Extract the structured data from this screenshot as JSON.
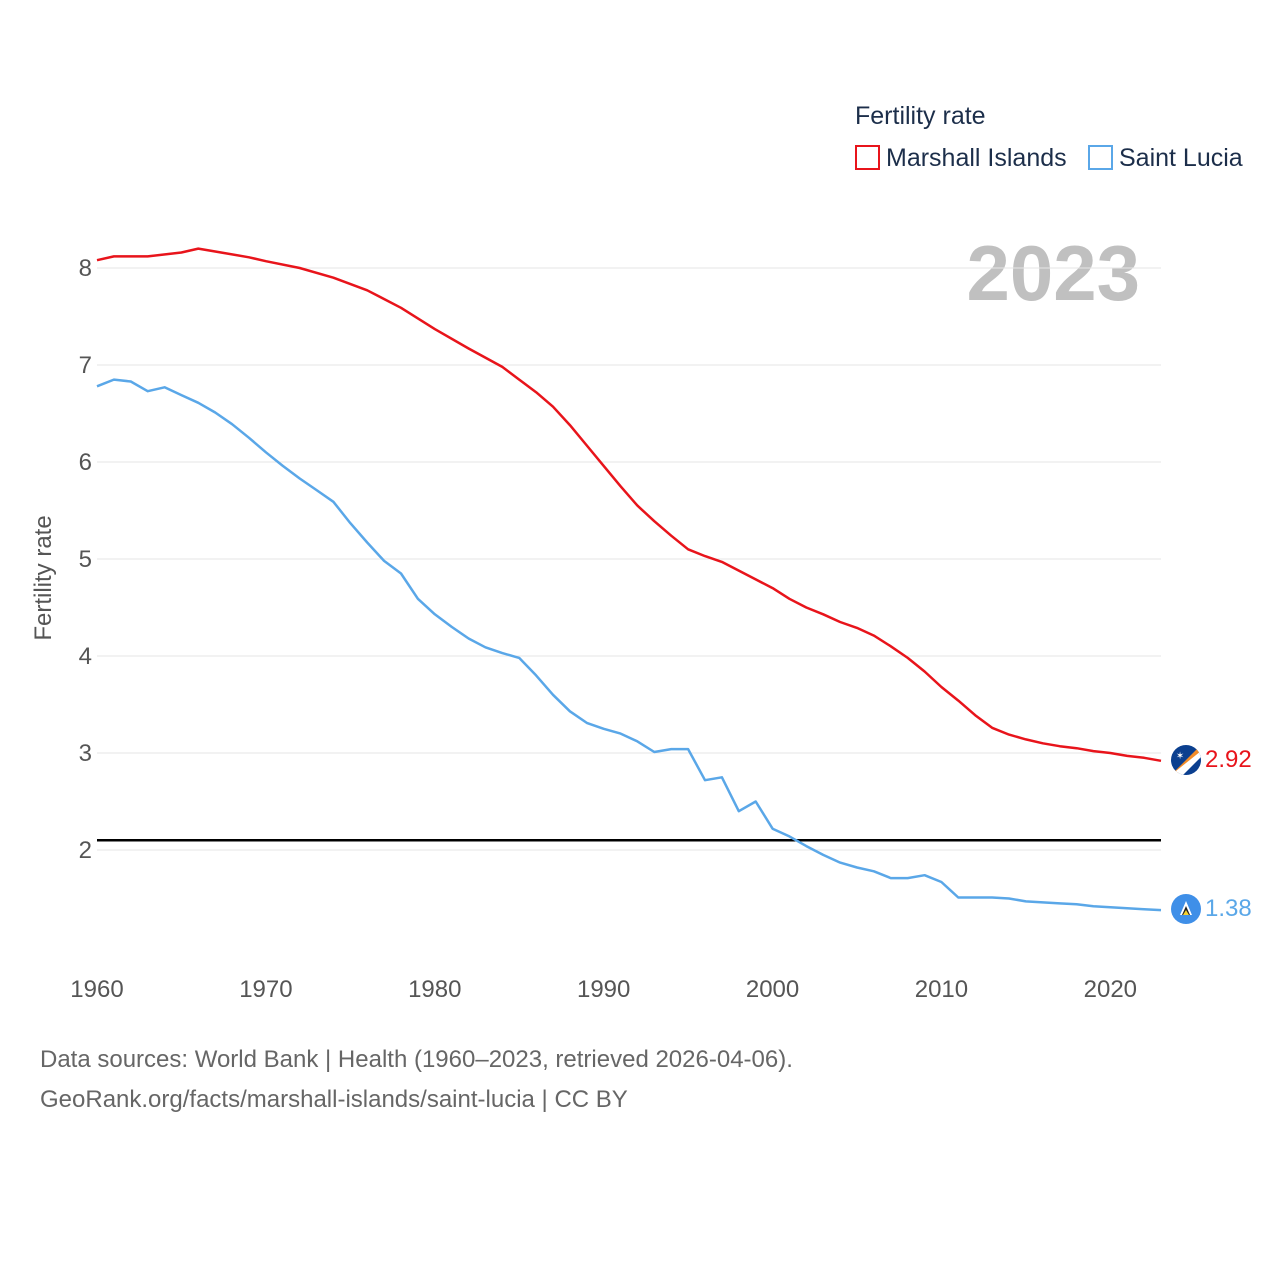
{
  "legend": {
    "title": "Fertility rate",
    "items": [
      {
        "name": "Marshall Islands",
        "color": "#e8141b"
      },
      {
        "name": "Saint Lucia",
        "color": "#5aa7e8"
      }
    ]
  },
  "year_display": "2023",
  "reference_line": 2.1,
  "chart_data": {
    "type": "line",
    "title": "Fertility rate",
    "xlabel": "",
    "ylabel": "Fertility rate",
    "xlim": [
      1960,
      2023
    ],
    "ylim": [
      1.0,
      8.5
    ],
    "x_ticks": [
      1960,
      1970,
      1980,
      1990,
      2000,
      2010,
      2020
    ],
    "y_ticks": [
      2,
      3,
      4,
      5,
      6,
      7,
      8
    ],
    "series": [
      {
        "name": "Marshall Islands",
        "color": "#e8141b",
        "end_label": "2.92",
        "x": [
          1960,
          1961,
          1963,
          1965,
          1966,
          1967,
          1969,
          1970,
          1972,
          1974,
          1976,
          1978,
          1980,
          1982,
          1984,
          1985,
          1986,
          1987,
          1988,
          1989,
          1990,
          1991,
          1992,
          1993,
          1994,
          1995,
          1996,
          1997,
          1998,
          1999,
          2000,
          2001,
          2002,
          2003,
          2004,
          2005,
          2006,
          2007,
          2008,
          2009,
          2010,
          2011,
          2012,
          2013,
          2014,
          2015,
          2016,
          2017,
          2018,
          2019,
          2020,
          2021,
          2022,
          2023
        ],
        "values": [
          8.08,
          8.12,
          8.12,
          8.16,
          8.2,
          8.17,
          8.11,
          8.07,
          8.0,
          7.9,
          7.77,
          7.59,
          7.37,
          7.17,
          6.98,
          6.85,
          6.72,
          6.57,
          6.38,
          6.17,
          5.96,
          5.75,
          5.55,
          5.39,
          5.24,
          5.1,
          5.03,
          4.97,
          4.88,
          4.79,
          4.7,
          4.59,
          4.5,
          4.43,
          4.35,
          4.29,
          4.21,
          4.1,
          3.98,
          3.84,
          3.68,
          3.54,
          3.39,
          3.26,
          3.19,
          3.14,
          3.1,
          3.07,
          3.05,
          3.02,
          3.0,
          2.97,
          2.95,
          2.92
        ]
      },
      {
        "name": "Saint Lucia",
        "color": "#5aa7e8",
        "end_label": "1.38",
        "x": [
          1960,
          1961,
          1962,
          1963,
          1964,
          1965,
          1966,
          1967,
          1968,
          1969,
          1970,
          1971,
          1972,
          1973,
          1974,
          1975,
          1976,
          1977,
          1978,
          1979,
          1980,
          1981,
          1982,
          1983,
          1984,
          1985,
          1986,
          1987,
          1988,
          1989,
          1990,
          1991,
          1992,
          1993,
          1994,
          1995,
          1996,
          1997,
          1998,
          1999,
          2000,
          2001,
          2002,
          2003,
          2004,
          2005,
          2006,
          2007,
          2008,
          2009,
          2010,
          2011,
          2012,
          2013,
          2014,
          2015,
          2016,
          2017,
          2018,
          2019,
          2020,
          2021,
          2022,
          2023
        ],
        "values": [
          6.78,
          6.85,
          6.83,
          6.73,
          6.77,
          6.69,
          6.61,
          6.51,
          6.39,
          6.25,
          6.1,
          5.96,
          5.83,
          5.71,
          5.59,
          5.37,
          5.17,
          4.98,
          4.85,
          4.59,
          4.43,
          4.3,
          4.18,
          4.09,
          4.03,
          3.98,
          3.8,
          3.6,
          3.43,
          3.31,
          3.25,
          3.2,
          3.12,
          3.01,
          3.04,
          3.04,
          2.72,
          2.75,
          2.4,
          2.5,
          2.22,
          2.14,
          2.04,
          1.95,
          1.87,
          1.82,
          1.78,
          1.71,
          1.71,
          1.74,
          1.67,
          1.51,
          1.51,
          1.51,
          1.5,
          1.47,
          1.46,
          1.45,
          1.44,
          1.42,
          1.41,
          1.4,
          1.39,
          1.38
        ]
      }
    ]
  },
  "footer": {
    "line1": "Data sources: World Bank | Health (1960–2023, retrieved 2026-04-06).",
    "line2": "GeoRank.org/facts/marshall-islands/saint-lucia | CC BY"
  },
  "icons": {
    "marshall": "marshall-islands-flag-icon",
    "lucia": "saint-lucia-flag-icon"
  }
}
